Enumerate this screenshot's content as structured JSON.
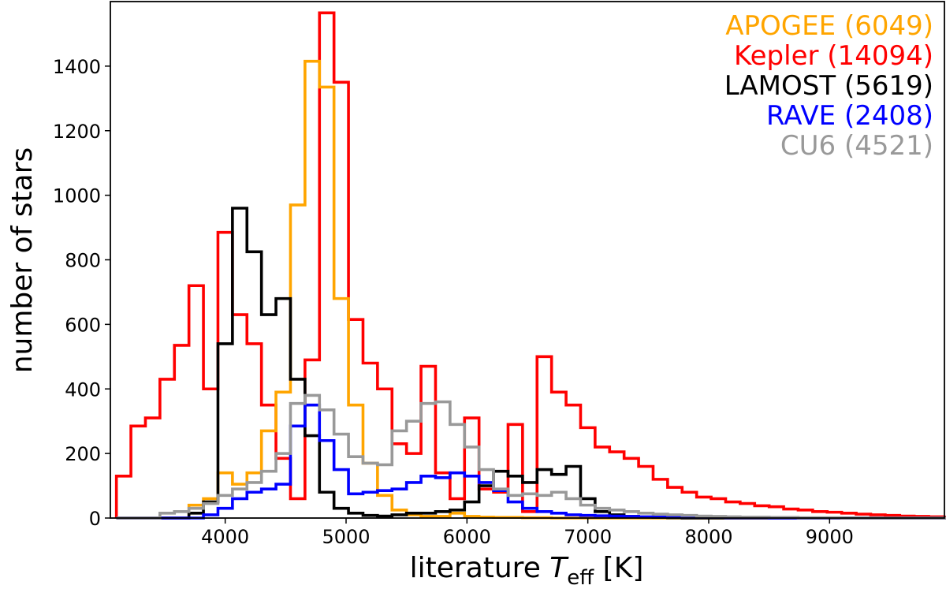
{
  "chart_data": {
    "type": "histogram-step",
    "xlabel_prefix": "literature ",
    "xlabel_var": "T",
    "xlabel_sub": "eff",
    "xlabel_suffix": " [K]",
    "ylabel": "number of stars",
    "xlim": [
      3050,
      9950
    ],
    "ylim": [
      0,
      1600
    ],
    "xticks": [
      4000,
      5000,
      6000,
      7000,
      8000,
      9000
    ],
    "yticks": [
      0,
      200,
      400,
      600,
      800,
      1000,
      1200,
      1400
    ],
    "bin_start": 3100,
    "bin_width": 120,
    "grid": false,
    "legend_position": "top-right",
    "series": [
      {
        "name": "Kepler",
        "count": "(14094)",
        "color": "#ff0000",
        "values": [
          130,
          285,
          310,
          430,
          535,
          720,
          400,
          885,
          630,
          540,
          350,
          185,
          60,
          490,
          1565,
          1350,
          615,
          480,
          400,
          230,
          200,
          470,
          140,
          60,
          310,
          90,
          80,
          290,
          20,
          500,
          390,
          350,
          280,
          220,
          205,
          185,
          160,
          120,
          95,
          80,
          65,
          60,
          50,
          45,
          38,
          35,
          28,
          25,
          20,
          18,
          15,
          12,
          10,
          8,
          6,
          5,
          4,
          3
        ]
      },
      {
        "name": "APOGEE",
        "count": "(6049)",
        "color": "#ffa500",
        "values": [
          0,
          0,
          0,
          0,
          0,
          40,
          60,
          140,
          105,
          140,
          270,
          390,
          970,
          1415,
          1335,
          680,
          350,
          170,
          70,
          25,
          10,
          5,
          5,
          15,
          5,
          3,
          2,
          2,
          1,
          1,
          0,
          0,
          0,
          0,
          0,
          0,
          0,
          0,
          0,
          0,
          0,
          0,
          0,
          0,
          0,
          0,
          0,
          0,
          0,
          0,
          0,
          0,
          0,
          0,
          0,
          0,
          0,
          0
        ]
      },
      {
        "name": "LAMOST",
        "count": "(5619)",
        "color": "#000000",
        "values": [
          0,
          0,
          0,
          0,
          0,
          15,
          50,
          540,
          960,
          825,
          630,
          680,
          430,
          255,
          80,
          30,
          15,
          8,
          6,
          10,
          15,
          15,
          20,
          25,
          50,
          100,
          145,
          130,
          110,
          150,
          135,
          160,
          60,
          20,
          10,
          5,
          3,
          2,
          1,
          0,
          0,
          0,
          0,
          0,
          0,
          0,
          0,
          0,
          0,
          0,
          0,
          0,
          0,
          0,
          0,
          0,
          0,
          0
        ]
      },
      {
        "name": "RAVE",
        "count": "(2408)",
        "color": "#0000ff",
        "values": [
          0,
          0,
          0,
          0,
          0,
          0,
          10,
          30,
          60,
          80,
          90,
          105,
          285,
          350,
          240,
          150,
          75,
          80,
          85,
          90,
          110,
          130,
          125,
          140,
          130,
          110,
          85,
          50,
          30,
          20,
          15,
          10,
          8,
          7,
          6,
          5,
          4,
          3,
          3,
          2,
          2,
          2,
          1,
          1,
          1,
          0,
          0,
          0,
          0,
          0,
          0,
          0,
          0,
          0,
          0,
          0,
          0,
          0
        ]
      },
      {
        "name": "CU6",
        "count": "(4521)",
        "color": "#999999",
        "values": [
          0,
          0,
          0,
          15,
          20,
          30,
          45,
          70,
          90,
          110,
          145,
          200,
          355,
          380,
          335,
          260,
          190,
          170,
          165,
          270,
          300,
          355,
          360,
          290,
          220,
          150,
          90,
          70,
          75,
          70,
          80,
          60,
          40,
          30,
          25,
          20,
          15,
          12,
          10,
          8,
          6,
          5,
          4,
          3,
          3,
          2,
          2,
          1,
          1,
          1,
          0,
          0,
          0,
          0,
          0,
          0,
          0,
          0
        ]
      }
    ],
    "legend_order": [
      "APOGEE",
      "Kepler",
      "LAMOST",
      "RAVE",
      "CU6"
    ]
  }
}
